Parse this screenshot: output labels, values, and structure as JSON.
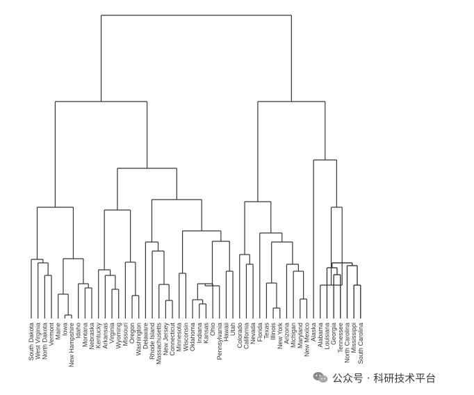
{
  "diagram": {
    "type": "dendrogram",
    "leaves": [
      "South Dakota",
      "West Virginia",
      "North Dakota",
      "Vermont",
      "Maine",
      "Iowa",
      "New Hampshire",
      "Idaho",
      "Montana",
      "Nebraska",
      "Kentucky",
      "Arkansas",
      "Virginia",
      "Wyoming",
      "Missouri",
      "Oregon",
      "Washington",
      "Delaware",
      "Rhode Island",
      "Massachusetts",
      "New Jersey",
      "Connecticut",
      "Minnesota",
      "Wisconsin",
      "Oklahoma",
      "Indiana",
      "Kansas",
      "Ohio",
      "Pennsylvania",
      "Hawaii",
      "Utah",
      "Colorado",
      "California",
      "Nevada",
      "Florida",
      "Texas",
      "Illinois",
      "New York",
      "Arizona",
      "Michigan",
      "Maryland",
      "New Mexico",
      "Alaska",
      "Alabama",
      "Louisiana",
      "Georgia",
      "Tennessee",
      "North Carolina",
      "Mississippi",
      "South Carolina"
    ]
  },
  "watermark": {
    "text": "公众号 · 科研技术平台",
    "icon": "wechat-icon"
  }
}
